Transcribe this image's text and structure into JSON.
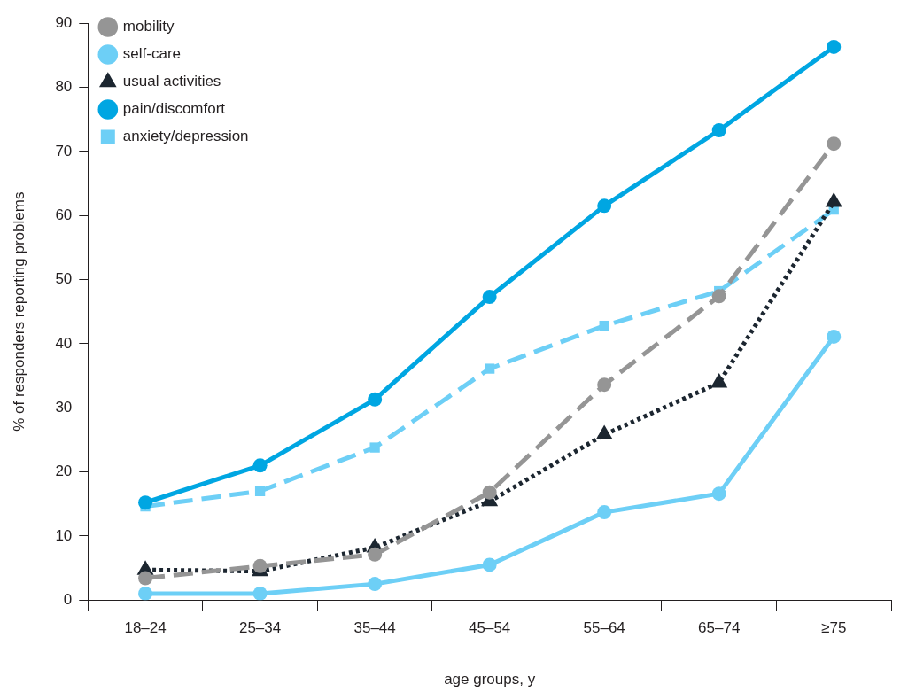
{
  "chart_data": {
    "type": "line",
    "xlabel": "age groups, y",
    "ylabel": "% of responders reporting problems",
    "categories": [
      "18–24",
      "25–34",
      "35–44",
      "45–54",
      "55–64",
      "65–74",
      "≥75"
    ],
    "ylim": [
      0,
      90
    ],
    "yticks": [
      0,
      10,
      20,
      30,
      40,
      50,
      60,
      70,
      80,
      90
    ],
    "grid": false,
    "legend": "top left",
    "series": [
      {
        "name": "mobility",
        "color": "#959595",
        "marker": "circle",
        "line_style": "dashed",
        "values": [
          3.4,
          5.3,
          7.1,
          16.8,
          33.6,
          47.4,
          71.2
        ]
      },
      {
        "name": "self-care",
        "color": "#6dcff6",
        "marker": "circle",
        "line_style": "solid",
        "values": [
          1.0,
          1.0,
          2.5,
          5.5,
          13.7,
          16.6,
          41.1
        ]
      },
      {
        "name": "usual activities",
        "color": "#1c2630",
        "marker": "triangle",
        "line_style": "dotted",
        "values": [
          4.7,
          4.5,
          8.2,
          15.4,
          25.8,
          33.9,
          62.1
        ]
      },
      {
        "name": "pain/discomfort",
        "color": "#00a6e2",
        "marker": "circle",
        "line_style": "solid",
        "values": [
          15.2,
          21.0,
          31.3,
          47.3,
          61.5,
          73.3,
          86.3
        ]
      },
      {
        "name": "anxiety/depression",
        "color": "#6dcff6",
        "marker": "square",
        "line_style": "dashed",
        "values": [
          14.6,
          17.0,
          23.8,
          36.1,
          42.8,
          48.2,
          60.9
        ]
      }
    ]
  }
}
